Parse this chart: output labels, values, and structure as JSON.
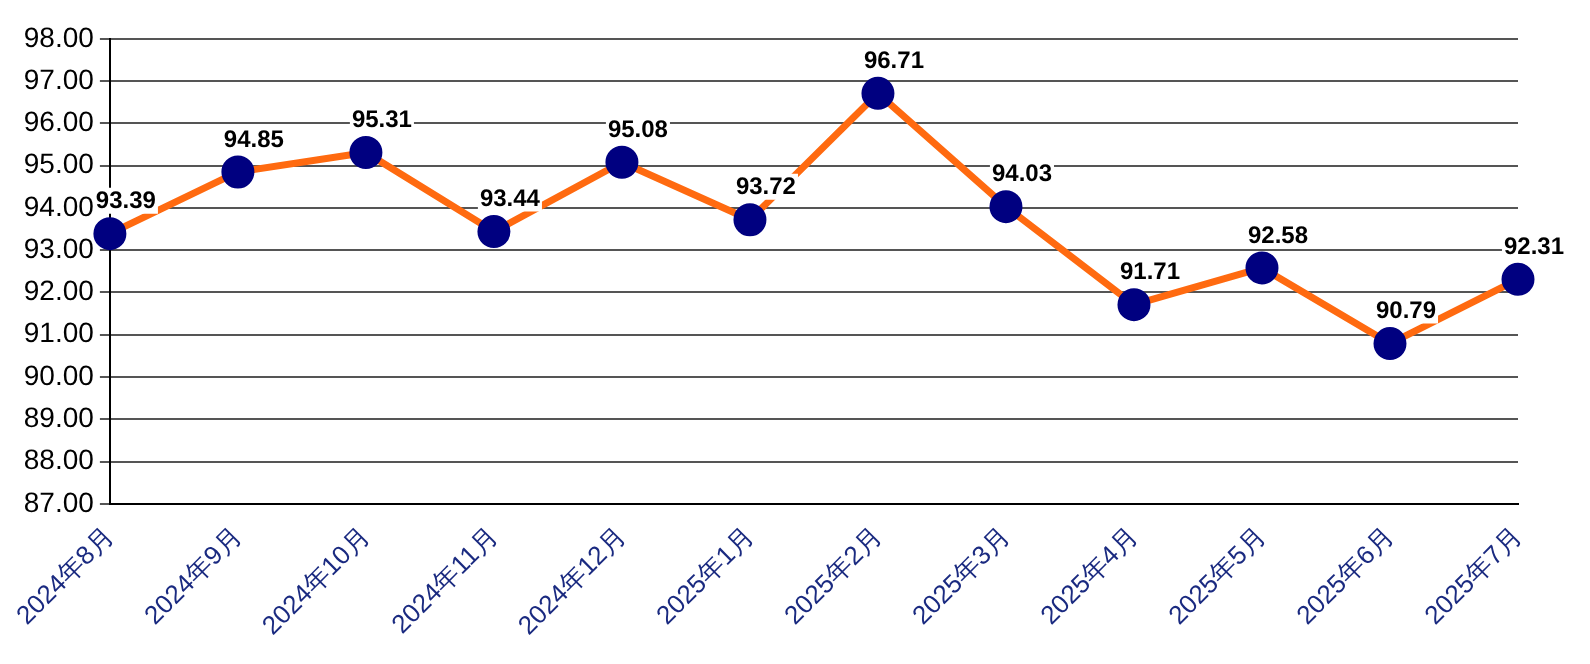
{
  "chart_data": {
    "type": "line",
    "categories": [
      "2024年8月",
      "2024年9月",
      "2024年10月",
      "2024年11月",
      "2024年12月",
      "2025年1月",
      "2025年2月",
      "2025年3月",
      "2025年4月",
      "2025年5月",
      "2025年6月",
      "2025年7月"
    ],
    "series": [
      {
        "color": "#ff6a10",
        "colors": [
          "#000080",
          "#000080",
          "#000080",
          "#000080",
          "#000080",
          "#000080",
          "#000080",
          "#000080",
          "#000080",
          "#000080",
          "#000080",
          "#000080"
        ],
        "values": [
          93.39,
          94.85,
          95.31,
          93.44,
          95.08,
          93.72,
          96.71,
          94.03,
          91.71,
          92.58,
          90.79,
          92.31
        ]
      }
    ],
    "marker": "circle",
    "data_labels": true,
    "grid": "y",
    "legend": false,
    "ylim": [
      87,
      98
    ],
    "yticks": [
      {
        "value": 87,
        "label": "87.00"
      },
      {
        "value": 88,
        "label": "88.00"
      },
      {
        "value": 89,
        "label": "89.00"
      },
      {
        "value": 90,
        "label": "90.00"
      },
      {
        "value": 91,
        "label": "91.00"
      },
      {
        "value": 92,
        "label": "92.00"
      },
      {
        "value": 93,
        "label": "93.00"
      },
      {
        "value": 94,
        "label": "94.00"
      },
      {
        "value": 95,
        "label": "95.00"
      },
      {
        "value": 96,
        "label": "96.00"
      },
      {
        "value": 97,
        "label": "97.00"
      },
      {
        "value": 98,
        "label": "98.00"
      }
    ]
  }
}
